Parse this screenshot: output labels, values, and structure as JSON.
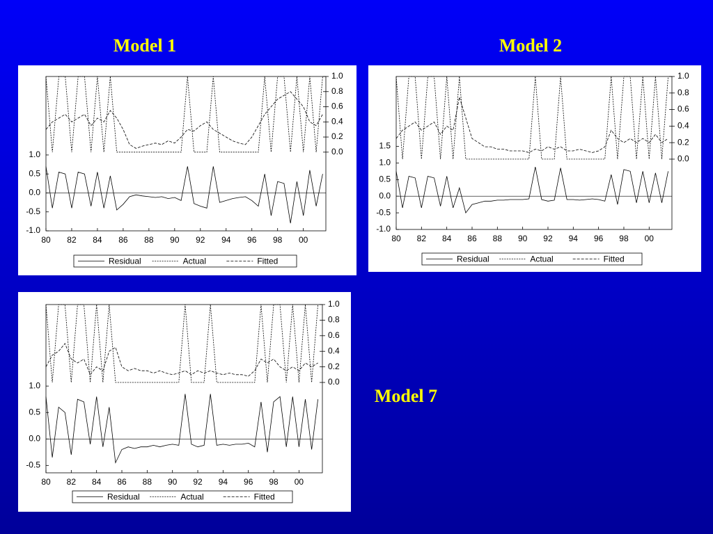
{
  "chart_data": [
    {
      "type": "line",
      "title": "Model 1",
      "x": [
        1980,
        1980.5,
        1981,
        1981.5,
        1982,
        1982.5,
        1983,
        1983.5,
        1984,
        1984.5,
        1985,
        1985.5,
        1986,
        1986.5,
        1987,
        1987.5,
        1988,
        1988.5,
        1989,
        1989.5,
        1990,
        1990.5,
        1991,
        1991.5,
        1992,
        1992.5,
        1993,
        1993.5,
        1994,
        1994.5,
        1995,
        1995.5,
        1996,
        1996.5,
        1997,
        1997.5,
        1998,
        1998.5,
        1999,
        1999.5,
        2000,
        2000.5,
        2001,
        2001.5
      ],
      "xlim": [
        1980,
        2001.75
      ],
      "xticks": [
        {
          "value": 1980,
          "label": "80"
        },
        {
          "value": 1982,
          "label": "82"
        },
        {
          "value": 1984,
          "label": "84"
        },
        {
          "value": 1986,
          "label": "86"
        },
        {
          "value": 1988,
          "label": "88"
        },
        {
          "value": 1990,
          "label": "90"
        },
        {
          "value": 1992,
          "label": "92"
        },
        {
          "value": 1994,
          "label": "94"
        },
        {
          "value": 1996,
          "label": "96"
        },
        {
          "value": 1998,
          "label": "98"
        },
        {
          "value": 2000,
          "label": "00"
        }
      ],
      "ylim": [
        -1.0,
        3.07
      ],
      "yticks": [
        {
          "value": -1,
          "label": "-1.0"
        },
        -0.5,
        {
          "value": 0,
          "label": "0.0"
        },
        0.5,
        {
          "value": 1,
          "label": "1.0"
        }
      ],
      "y2lim": [
        -1.04,
        1.0
      ],
      "y2ticks": [
        {
          "value": 0,
          "label": "0.0"
        },
        0.2,
        0.4,
        0.6,
        0.8,
        {
          "value": 1,
          "label": "1.0"
        }
      ],
      "series": [
        {
          "name": "Residual",
          "color": "#000000",
          "style": "solid",
          "values": [
            0.7,
            -0.4,
            0.55,
            0.5,
            -0.4,
            0.55,
            0.5,
            -0.35,
            0.55,
            -0.4,
            0.45,
            -0.45,
            -0.3,
            -0.1,
            -0.05,
            -0.08,
            -0.1,
            -0.12,
            -0.1,
            -0.15,
            -0.12,
            -0.2,
            0.7,
            -0.28,
            -0.35,
            -0.4,
            0.7,
            -0.25,
            -0.2,
            -0.15,
            -0.12,
            -0.1,
            -0.2,
            -0.35,
            0.5,
            -0.6,
            0.3,
            0.25,
            -0.8,
            0.3,
            -0.6,
            0.6,
            -0.35,
            0.5
          ]
        },
        {
          "name": "Actual",
          "color": "#000000",
          "style": "dotted",
          "axis": "y2",
          "values": [
            1,
            0,
            1,
            1,
            0,
            1,
            1,
            0,
            1,
            0,
            1,
            0,
            0,
            0,
            0,
            0,
            0,
            0,
            0,
            0,
            0,
            0,
            1,
            0,
            0,
            0,
            1,
            0,
            0,
            0,
            0,
            0,
            0,
            0,
            1,
            0,
            1,
            1,
            0,
            1,
            0,
            1,
            0,
            1
          ]
        },
        {
          "name": "Fitted",
          "color": "#000000",
          "style": "dashed",
          "axis": "y2",
          "values": [
            0.3,
            0.4,
            0.45,
            0.5,
            0.4,
            0.45,
            0.5,
            0.35,
            0.45,
            0.4,
            0.55,
            0.45,
            0.3,
            0.1,
            0.05,
            0.08,
            0.1,
            0.12,
            0.1,
            0.15,
            0.12,
            0.2,
            0.3,
            0.28,
            0.35,
            0.4,
            0.3,
            0.25,
            0.2,
            0.15,
            0.12,
            0.1,
            0.2,
            0.35,
            0.5,
            0.6,
            0.7,
            0.75,
            0.8,
            0.7,
            0.6,
            0.4,
            0.35,
            0.5
          ]
        }
      ]
    },
    {
      "type": "line",
      "title": "Model 2",
      "x": [
        1980,
        1980.5,
        1981,
        1981.5,
        1982,
        1982.5,
        1983,
        1983.5,
        1984,
        1984.5,
        1985,
        1985.5,
        1986,
        1986.5,
        1987,
        1987.5,
        1988,
        1988.5,
        1989,
        1989.5,
        1990,
        1990.5,
        1991,
        1991.5,
        1992,
        1992.5,
        1993,
        1993.5,
        1994,
        1994.5,
        1995,
        1995.5,
        1996,
        1996.5,
        1997,
        1997.5,
        1998,
        1998.5,
        1999,
        1999.5,
        2000,
        2000.5,
        2001,
        2001.5
      ],
      "xlim": [
        1980,
        2001.8
      ],
      "xticks": [
        {
          "value": 1980,
          "label": "80"
        },
        {
          "value": 1982,
          "label": "82"
        },
        {
          "value": 1984,
          "label": "84"
        },
        {
          "value": 1986,
          "label": "86"
        },
        {
          "value": 1988,
          "label": "88"
        },
        {
          "value": 1990,
          "label": "90"
        },
        {
          "value": 1992,
          "label": "92"
        },
        {
          "value": 1994,
          "label": "94"
        },
        {
          "value": 1996,
          "label": "96"
        },
        {
          "value": 1998,
          "label": "98"
        },
        {
          "value": 2000,
          "label": "00"
        }
      ],
      "ylim": [
        -1.0,
        3.6
      ],
      "yticks": [
        {
          "value": -1,
          "label": "-1.0"
        },
        -0.5,
        {
          "value": 0,
          "label": "0.0"
        },
        0.5,
        {
          "value": 1,
          "label": "1.0"
        },
        1.5
      ],
      "y2lim": [
        -0.85,
        1.0
      ],
      "y2ticks": [
        {
          "value": 0,
          "label": "0.0"
        },
        0.2,
        0.4,
        0.6,
        0.8,
        {
          "value": 1,
          "label": "1.0"
        }
      ],
      "series": [
        {
          "name": "Residual",
          "color": "#000000",
          "style": "solid",
          "values": [
            0.75,
            -0.35,
            0.6,
            0.55,
            -0.35,
            0.6,
            0.55,
            -0.3,
            0.6,
            -0.35,
            0.25,
            -0.5,
            -0.25,
            -0.2,
            -0.15,
            -0.15,
            -0.12,
            -0.12,
            -0.1,
            -0.1,
            -0.1,
            -0.08,
            0.88,
            -0.1,
            -0.15,
            -0.12,
            0.85,
            -0.1,
            -0.1,
            -0.12,
            -0.1,
            -0.08,
            -0.1,
            -0.15,
            0.65,
            -0.25,
            0.8,
            0.75,
            -0.2,
            0.75,
            -0.2,
            0.7,
            -0.2,
            0.75
          ]
        },
        {
          "name": "Actual",
          "color": "#000000",
          "style": "dotted",
          "axis": "y2",
          "values": [
            1,
            0,
            1,
            1,
            0,
            1,
            1,
            0,
            1,
            0,
            1,
            0,
            0,
            0,
            0,
            0,
            0,
            0,
            0,
            0,
            0,
            0,
            1,
            0,
            0,
            0,
            1,
            0,
            0,
            0,
            0,
            0,
            0,
            0,
            1,
            0,
            1,
            1,
            0,
            1,
            0,
            1,
            0,
            1
          ]
        },
        {
          "name": "Fitted",
          "color": "#000000",
          "style": "dashed",
          "axis": "y2",
          "values": [
            0.25,
            0.35,
            0.4,
            0.45,
            0.35,
            0.4,
            0.45,
            0.3,
            0.4,
            0.35,
            0.75,
            0.5,
            0.25,
            0.2,
            0.15,
            0.15,
            0.12,
            0.12,
            0.1,
            0.1,
            0.1,
            0.08,
            0.12,
            0.1,
            0.15,
            0.12,
            0.15,
            0.1,
            0.1,
            0.12,
            0.1,
            0.08,
            0.1,
            0.15,
            0.35,
            0.25,
            0.2,
            0.25,
            0.2,
            0.25,
            0.2,
            0.3,
            0.2,
            0.25
          ]
        }
      ]
    },
    {
      "type": "line",
      "title": "Model 7",
      "x": [
        1980,
        1980.5,
        1981,
        1981.5,
        1982,
        1982.5,
        1983,
        1983.5,
        1984,
        1984.5,
        1985,
        1985.5,
        1986,
        1986.5,
        1987,
        1987.5,
        1988,
        1988.5,
        1989,
        1989.5,
        1990,
        1990.5,
        1991,
        1991.5,
        1992,
        1992.5,
        1993,
        1993.5,
        1994,
        1994.5,
        1995,
        1995.5,
        1996,
        1996.5,
        1997,
        1997.5,
        1998,
        1998.5,
        1999,
        1999.5,
        2000,
        2000.5,
        2001,
        2001.5
      ],
      "xlim": [
        1980,
        2001.85
      ],
      "xticks": [
        {
          "value": 1980,
          "label": "80"
        },
        {
          "value": 1982,
          "label": "82"
        },
        {
          "value": 1984,
          "label": "84"
        },
        {
          "value": 1986,
          "label": "86"
        },
        {
          "value": 1988,
          "label": "88"
        },
        {
          "value": 1990,
          "label": "90"
        },
        {
          "value": 1992,
          "label": "92"
        },
        {
          "value": 1994,
          "label": "94"
        },
        {
          "value": 1996,
          "label": "96"
        },
        {
          "value": 1998,
          "label": "98"
        },
        {
          "value": 2000,
          "label": "00"
        }
      ],
      "ylim": [
        -0.64,
        2.54
      ],
      "yticks": [
        -0.5,
        {
          "value": 0,
          "label": "0.0"
        },
        0.5,
        {
          "value": 1,
          "label": "1.0"
        }
      ],
      "y2lim": [
        -1.16,
        1.0
      ],
      "y2ticks": [
        {
          "value": 0,
          "label": "0.0"
        },
        0.2,
        0.4,
        0.6,
        0.8,
        {
          "value": 1,
          "label": "1.0"
        }
      ],
      "series": [
        {
          "name": "Residual",
          "color": "#000000",
          "style": "solid",
          "values": [
            0.8,
            -0.35,
            0.6,
            0.5,
            -0.3,
            0.75,
            0.7,
            -0.1,
            0.8,
            -0.15,
            0.6,
            -0.45,
            -0.2,
            -0.15,
            -0.18,
            -0.15,
            -0.15,
            -0.12,
            -0.15,
            -0.12,
            -0.1,
            -0.12,
            0.85,
            -0.1,
            -0.15,
            -0.12,
            0.85,
            -0.12,
            -0.1,
            -0.12,
            -0.1,
            -0.1,
            -0.08,
            -0.15,
            0.7,
            -0.25,
            0.7,
            0.8,
            -0.15,
            0.8,
            -0.15,
            0.75,
            -0.2,
            0.75
          ]
        },
        {
          "name": "Actual",
          "color": "#000000",
          "style": "dotted",
          "axis": "y2",
          "values": [
            1,
            0,
            1,
            1,
            0,
            1,
            1,
            0,
            1,
            0,
            1,
            0,
            0,
            0,
            0,
            0,
            0,
            0,
            0,
            0,
            0,
            0,
            1,
            0,
            0,
            0,
            1,
            0,
            0,
            0,
            0,
            0,
            0,
            0,
            1,
            0,
            1,
            1,
            0,
            1,
            0,
            1,
            0,
            1
          ]
        },
        {
          "name": "Fitted",
          "color": "#000000",
          "style": "dashed",
          "axis": "y2",
          "values": [
            0.2,
            0.35,
            0.4,
            0.5,
            0.3,
            0.25,
            0.3,
            0.1,
            0.2,
            0.15,
            0.4,
            0.45,
            0.2,
            0.15,
            0.18,
            0.15,
            0.15,
            0.12,
            0.15,
            0.12,
            0.1,
            0.12,
            0.15,
            0.1,
            0.15,
            0.12,
            0.15,
            0.12,
            0.1,
            0.12,
            0.1,
            0.1,
            0.08,
            0.15,
            0.3,
            0.25,
            0.3,
            0.2,
            0.15,
            0.2,
            0.15,
            0.25,
            0.2,
            0.25
          ]
        }
      ]
    }
  ]
}
